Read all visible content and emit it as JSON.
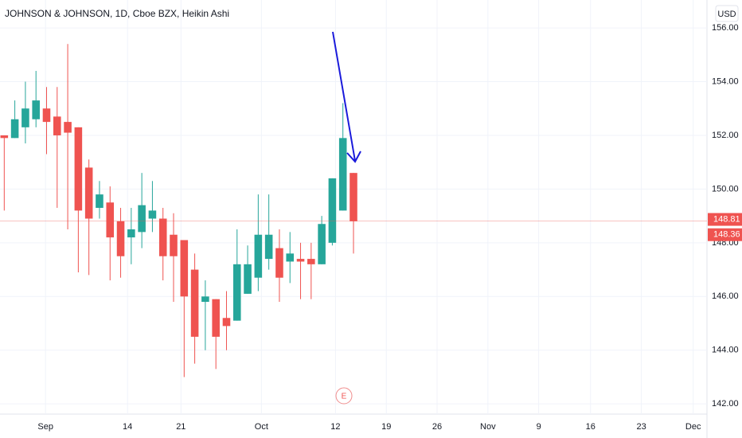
{
  "chart_data": {
    "type": "candlestick",
    "title": "JOHNSON & JOHNSON, 1D, Cboe BZX, Heikin Ashi",
    "currency": "USD",
    "up_color": "#26a69a",
    "down_color": "#ef5350",
    "x": [
      0,
      1,
      2,
      3,
      4,
      5,
      6,
      7,
      8,
      9,
      10,
      11,
      12,
      13,
      14,
      15,
      16,
      17,
      18,
      19,
      20,
      21,
      22,
      23,
      24,
      25,
      26,
      27,
      28,
      29,
      30,
      31,
      32,
      33
    ],
    "open": [
      152.0,
      151.9,
      152.3,
      152.6,
      153.0,
      152.7,
      152.5,
      152.3,
      150.8,
      149.3,
      149.5,
      148.8,
      148.2,
      148.4,
      148.9,
      148.9,
      148.3,
      148.1,
      147.0,
      145.8,
      145.9,
      145.2,
      145.1,
      146.1,
      146.7,
      147.4,
      147.8,
      147.3,
      147.4,
      147.4,
      147.2,
      148.0,
      149.2,
      150.6
    ],
    "high": [
      152.0,
      153.3,
      154.0,
      154.4,
      153.8,
      153.8,
      155.4,
      152.3,
      151.1,
      150.3,
      150.1,
      149.3,
      149.3,
      150.6,
      150.3,
      149.3,
      149.1,
      148.1,
      147.6,
      146.6,
      145.9,
      146.2,
      148.5,
      147.9,
      149.8,
      149.8,
      148.5,
      148.4,
      148.0,
      148.0,
      149.0,
      150.4,
      153.2,
      150.6
    ],
    "low": [
      149.2,
      151.9,
      151.7,
      152.3,
      151.3,
      149.3,
      148.5,
      146.9,
      146.8,
      148.9,
      146.6,
      146.7,
      147.2,
      147.8,
      148.4,
      146.6,
      145.8,
      143.0,
      143.5,
      144.0,
      143.3,
      144.0,
      145.1,
      146.1,
      146.2,
      147.0,
      145.8,
      146.5,
      145.9,
      145.9,
      147.2,
      147.9,
      149.2,
      147.6
    ],
    "close": [
      151.9,
      152.6,
      153.0,
      153.3,
      152.5,
      152.0,
      152.1,
      149.2,
      148.9,
      149.8,
      148.2,
      147.5,
      148.5,
      149.4,
      149.2,
      147.5,
      147.5,
      146.0,
      144.5,
      146.0,
      144.5,
      144.9,
      147.2,
      147.2,
      148.3,
      148.3,
      146.7,
      147.6,
      147.3,
      147.2,
      148.7,
      150.4,
      151.9,
      148.8
    ],
    "xlim": [
      -0.4,
      66.4
    ],
    "xticks": [
      {
        "value": 3.9,
        "label": "Sep"
      },
      {
        "value": 11.65,
        "label": "14"
      },
      {
        "value": 16.7,
        "label": "21"
      },
      {
        "value": 24.3,
        "label": "Oct"
      },
      {
        "value": 31.3,
        "label": "12"
      },
      {
        "value": 36.1,
        "label": "19"
      },
      {
        "value": 40.9,
        "label": "26"
      },
      {
        "value": 45.7,
        "label": "Nov"
      },
      {
        "value": 50.5,
        "label": "9"
      },
      {
        "value": 55.4,
        "label": "16"
      },
      {
        "value": 60.2,
        "label": "23"
      },
      {
        "value": 65.1,
        "label": "Dec"
      }
    ],
    "ylim": [
      141.62,
      157.04
    ],
    "yticks": [
      {
        "value": 142,
        "label": "142.00"
      },
      {
        "value": 144,
        "label": "144.00"
      },
      {
        "value": 146,
        "label": "146.00"
      },
      {
        "value": 148,
        "label": "148.00"
      },
      {
        "value": 150,
        "label": "150.00"
      },
      {
        "value": 152,
        "label": "152.00"
      },
      {
        "value": 154,
        "label": "154.00"
      },
      {
        "value": 156,
        "label": "156.00"
      }
    ],
    "grid": true,
    "price_labels": [
      {
        "value": 148.81,
        "label": "148.81",
        "color": "#ef5350"
      },
      {
        "value": 148.36,
        "label": "148.36",
        "color": "#ef5350"
      }
    ],
    "event_marker": "E"
  }
}
